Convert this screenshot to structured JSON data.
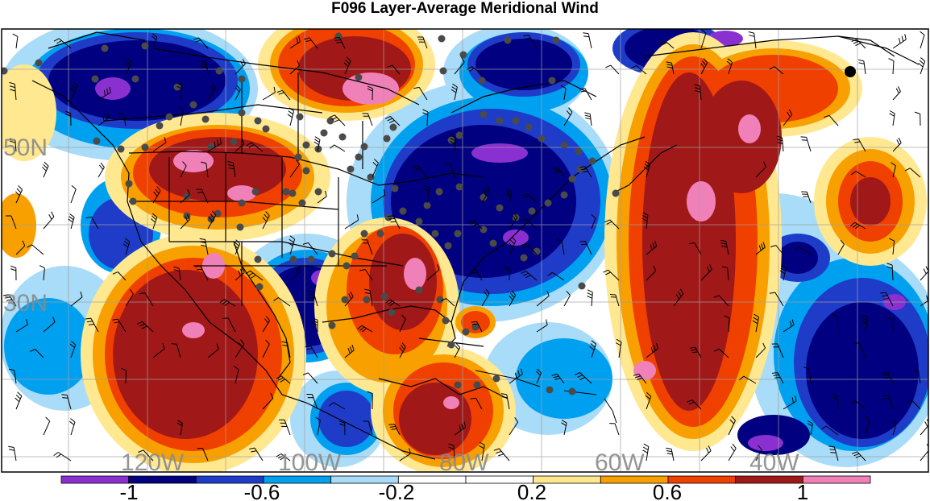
{
  "title": "F096 Layer-Average Meridional Wind",
  "map": {
    "region": "North America and western North Atlantic",
    "lon_labels": [
      "120W",
      "100W",
      "80W",
      "60W",
      "40W"
    ],
    "lat_labels": [
      "50N",
      "30N"
    ],
    "grid": true,
    "overlays": [
      "wind barbs",
      "station observation dots",
      "coastlines and political boundaries"
    ]
  },
  "colorbar": {
    "tick_labels": [
      "-1",
      "-0.6",
      "-0.2",
      "0.2",
      "0.6",
      "1"
    ],
    "bins": [
      {
        "color": "#8a30d0"
      },
      {
        "color": "#000080"
      },
      {
        "color": "#1e3cc8"
      },
      {
        "color": "#00a0f0"
      },
      {
        "color": "#a8dcf8"
      },
      {
        "color": "#ffffff"
      },
      {
        "color": "#ffffff"
      },
      {
        "color": "#ffe890"
      },
      {
        "color": "#f8a000"
      },
      {
        "color": "#f04000"
      },
      {
        "color": "#a01818"
      },
      {
        "color": "#f080b8"
      }
    ]
  }
}
